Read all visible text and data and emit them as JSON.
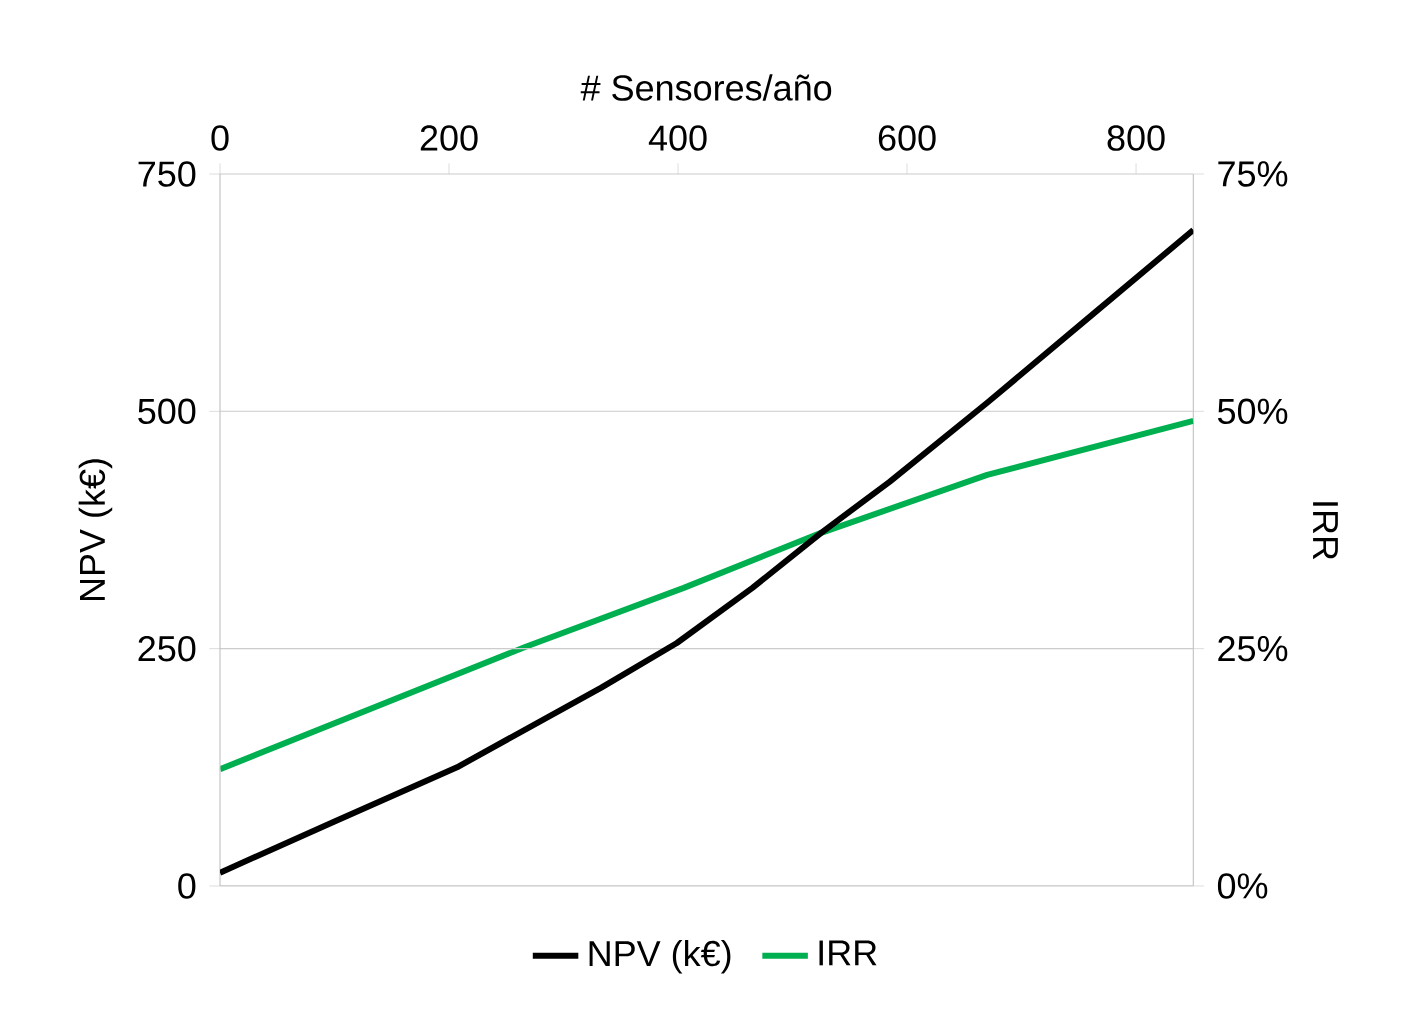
{
  "chart_data": {
    "type": "line",
    "xlabel": "# Sensores/año",
    "ylabel": "NPV (k€)",
    "y2label": "IRR",
    "xlim": [
      0,
      850
    ],
    "xticks": [
      0,
      200,
      400,
      600,
      800
    ],
    "ylim": [
      0,
      750
    ],
    "yticks": [
      0,
      250,
      500,
      750
    ],
    "y2lim": [
      0,
      75
    ],
    "y2ticks": [
      {
        "value": 0,
        "label": "0%"
      },
      {
        "value": 25,
        "label": "25%"
      },
      {
        "value": 50,
        "label": "50%"
      },
      {
        "value": 75,
        "label": "75%"
      }
    ],
    "grid": "y",
    "legend": "bottom",
    "marker": "none",
    "line_style": "solid",
    "series": [
      {
        "name": "NPV (k€)",
        "color": "#000000",
        "x": [
          0,
          100,
          207,
          333,
          399,
          465,
          525,
          585,
          670,
          760,
          850
        ],
        "values": [
          14,
          68,
          125,
          209,
          256,
          314,
          372,
          426,
          509,
          600,
          691
        ]
      },
      {
        "name": "IRR",
        "color": "#00b050",
        "axis": "y2",
        "x": [
          0,
          267,
          405,
          525,
          670,
          850
        ],
        "values": [
          12.3,
          25.2,
          31.4,
          37.2,
          43.3,
          49
        ]
      }
    ]
  }
}
